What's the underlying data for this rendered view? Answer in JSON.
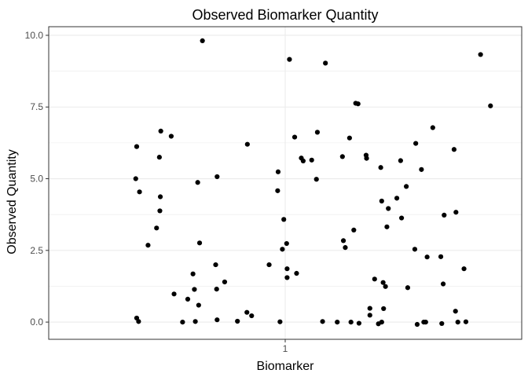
{
  "chart_data": {
    "type": "scatter",
    "title": "Observed Biomarker Quantity",
    "xlabel": "Biomarker",
    "ylabel": "Observed Quantity",
    "xlim": [
      0.5,
      1.5
    ],
    "ylim": [
      -0.6,
      10.3
    ],
    "x_ticks": [
      1
    ],
    "x_tick_labels": [
      "1"
    ],
    "y_ticks": [
      0,
      2.5,
      5,
      7.5,
      10
    ],
    "y_tick_labels": [
      "0.0",
      "2.5",
      "5.0",
      "7.5",
      "10.0"
    ],
    "y_minor_ticks": [
      1.25,
      3.75,
      6.25,
      8.75
    ],
    "grid": true,
    "point_color": "#000000",
    "panel_border_color": "#333333",
    "grid_color": "#ebebeb",
    "points": [
      {
        "x": 0.686,
        "y": 6.12
      },
      {
        "x": 0.684,
        "y": 5.0
      },
      {
        "x": 0.692,
        "y": 4.54
      },
      {
        "x": 0.686,
        "y": 0.14
      },
      {
        "x": 0.69,
        "y": 0.02
      },
      {
        "x": 0.71,
        "y": 2.68
      },
      {
        "x": 0.728,
        "y": 3.28
      },
      {
        "x": 0.737,
        "y": 6.66
      },
      {
        "x": 0.734,
        "y": 5.75
      },
      {
        "x": 0.736,
        "y": 4.37
      },
      {
        "x": 0.735,
        "y": 3.88
      },
      {
        "x": 0.759,
        "y": 6.48
      },
      {
        "x": 0.765,
        "y": 0.98
      },
      {
        "x": 0.783,
        "y": 0.0
      },
      {
        "x": 0.794,
        "y": 0.8
      },
      {
        "x": 0.805,
        "y": 1.68
      },
      {
        "x": 0.808,
        "y": 1.14
      },
      {
        "x": 0.81,
        "y": 0.02
      },
      {
        "x": 0.815,
        "y": 4.87
      },
      {
        "x": 0.817,
        "y": 0.59
      },
      {
        "x": 0.819,
        "y": 2.76
      },
      {
        "x": 0.825,
        "y": 9.81
      },
      {
        "x": 0.853,
        "y": 2.0
      },
      {
        "x": 0.856,
        "y": 5.07
      },
      {
        "x": 0.855,
        "y": 1.15
      },
      {
        "x": 0.856,
        "y": 0.08
      },
      {
        "x": 0.872,
        "y": 1.4
      },
      {
        "x": 0.899,
        "y": 0.03
      },
      {
        "x": 0.92,
        "y": 6.2
      },
      {
        "x": 0.919,
        "y": 0.34
      },
      {
        "x": 0.929,
        "y": 0.22
      },
      {
        "x": 0.966,
        "y": 2.0
      },
      {
        "x": 0.985,
        "y": 5.24
      },
      {
        "x": 0.984,
        "y": 4.58
      },
      {
        "x": 0.989,
        "y": 0.01
      },
      {
        "x": 0.994,
        "y": 2.54
      },
      {
        "x": 0.997,
        "y": 3.58
      },
      {
        "x": 1.003,
        "y": 2.74
      },
      {
        "x": 1.004,
        "y": 1.86
      },
      {
        "x": 1.004,
        "y": 1.55
      },
      {
        "x": 1.009,
        "y": 9.16
      },
      {
        "x": 1.02,
        "y": 6.45
      },
      {
        "x": 1.024,
        "y": 1.7
      },
      {
        "x": 1.034,
        "y": 5.72
      },
      {
        "x": 1.038,
        "y": 5.62
      },
      {
        "x": 1.056,
        "y": 5.65
      },
      {
        "x": 1.068,
        "y": 6.62
      },
      {
        "x": 1.066,
        "y": 4.98
      },
      {
        "x": 1.085,
        "y": 9.03
      },
      {
        "x": 1.079,
        "y": 0.02
      },
      {
        "x": 1.11,
        "y": 0.0
      },
      {
        "x": 1.121,
        "y": 5.77
      },
      {
        "x": 1.123,
        "y": 2.84
      },
      {
        "x": 1.127,
        "y": 2.6
      },
      {
        "x": 1.136,
        "y": 6.42
      },
      {
        "x": 1.139,
        "y": 0.0
      },
      {
        "x": 1.145,
        "y": 3.21
      },
      {
        "x": 1.149,
        "y": 7.63
      },
      {
        "x": 1.154,
        "y": 7.61
      },
      {
        "x": 1.156,
        "y": -0.04
      },
      {
        "x": 1.171,
        "y": 5.82
      },
      {
        "x": 1.172,
        "y": 5.71
      },
      {
        "x": 1.179,
        "y": 0.48
      },
      {
        "x": 1.179,
        "y": 0.24
      },
      {
        "x": 1.189,
        "y": 1.5
      },
      {
        "x": 1.197,
        "y": -0.06
      },
      {
        "x": 1.202,
        "y": 5.39
      },
      {
        "x": 1.204,
        "y": 4.22
      },
      {
        "x": 1.204,
        "y": 0.0
      },
      {
        "x": 1.207,
        "y": 1.38
      },
      {
        "x": 1.208,
        "y": 0.47
      },
      {
        "x": 1.212,
        "y": 1.24
      },
      {
        "x": 1.215,
        "y": 3.32
      },
      {
        "x": 1.218,
        "y": 3.96
      },
      {
        "x": 1.236,
        "y": 4.32
      },
      {
        "x": 1.244,
        "y": 5.63
      },
      {
        "x": 1.246,
        "y": 3.63
      },
      {
        "x": 1.256,
        "y": 4.73
      },
      {
        "x": 1.259,
        "y": 1.2
      },
      {
        "x": 1.274,
        "y": 2.54
      },
      {
        "x": 1.276,
        "y": 6.23
      },
      {
        "x": 1.279,
        "y": -0.08
      },
      {
        "x": 1.288,
        "y": 5.32
      },
      {
        "x": 1.293,
        "y": 0.0
      },
      {
        "x": 1.3,
        "y": 2.27
      },
      {
        "x": 1.297,
        "y": 0.0
      },
      {
        "x": 1.312,
        "y": 6.78
      },
      {
        "x": 1.329,
        "y": 2.28
      },
      {
        "x": 1.334,
        "y": 1.33
      },
      {
        "x": 1.336,
        "y": 3.73
      },
      {
        "x": 1.331,
        "y": -0.05
      },
      {
        "x": 1.357,
        "y": 6.02
      },
      {
        "x": 1.361,
        "y": 3.83
      },
      {
        "x": 1.36,
        "y": 0.38
      },
      {
        "x": 1.365,
        "y": 0.0
      },
      {
        "x": 1.378,
        "y": 1.86
      },
      {
        "x": 1.382,
        "y": 0.01
      },
      {
        "x": 1.413,
        "y": 9.33
      },
      {
        "x": 1.434,
        "y": 7.54
      }
    ]
  }
}
